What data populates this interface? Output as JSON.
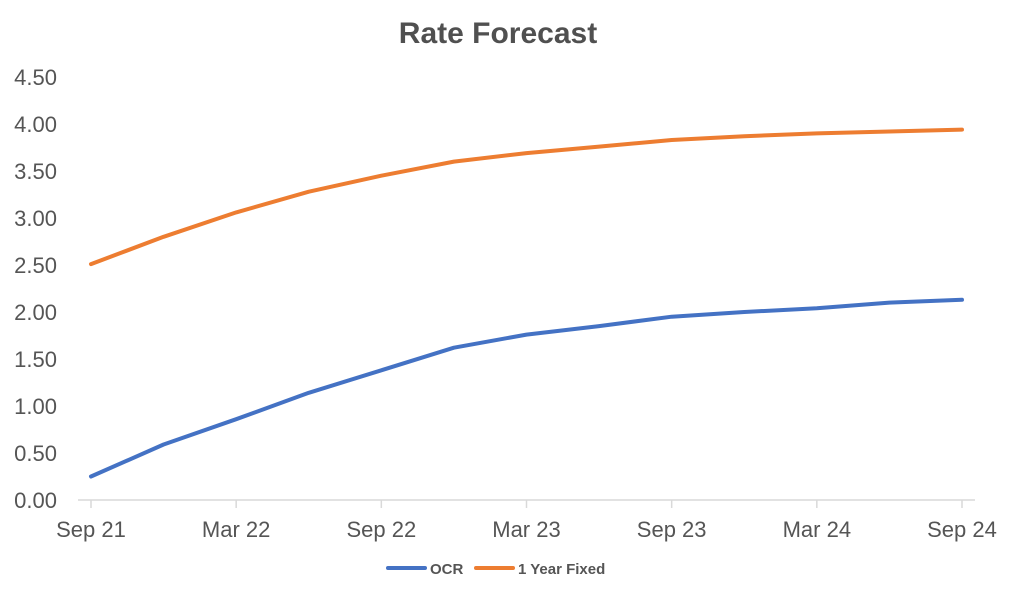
{
  "chart_data": {
    "type": "line",
    "title": "Rate Forecast",
    "xlabel": "",
    "ylabel": "",
    "x": [
      "Sep 21",
      "Dec 21",
      "Mar 22",
      "Jun 22",
      "Sep 22",
      "Dec 22",
      "Mar 23",
      "Jun 23",
      "Sep 23",
      "Dec 23",
      "Mar 24",
      "Jun 24",
      "Sep 24"
    ],
    "x_tick_labels": [
      "Sep 21",
      "Mar 22",
      "Sep 22",
      "Mar 23",
      "Sep 23",
      "Mar 24",
      "Sep 24"
    ],
    "y_tick_labels": [
      "0.00",
      "0.50",
      "1.00",
      "1.50",
      "2.00",
      "2.50",
      "3.00",
      "3.50",
      "4.00",
      "4.50"
    ],
    "ylim": [
      0,
      4.5
    ],
    "grid": false,
    "legend_position": "bottom",
    "series": [
      {
        "name": "OCR",
        "color": "#4472c4",
        "values": [
          0.25,
          0.59,
          0.86,
          1.14,
          1.38,
          1.62,
          1.76,
          1.85,
          1.95,
          2.0,
          2.04,
          2.1,
          2.13
        ]
      },
      {
        "name": "1 Year Fixed",
        "color": "#ed7d31",
        "values": [
          2.51,
          2.8,
          3.06,
          3.28,
          3.45,
          3.6,
          3.69,
          3.76,
          3.83,
          3.87,
          3.9,
          3.92,
          3.94
        ]
      }
    ]
  }
}
